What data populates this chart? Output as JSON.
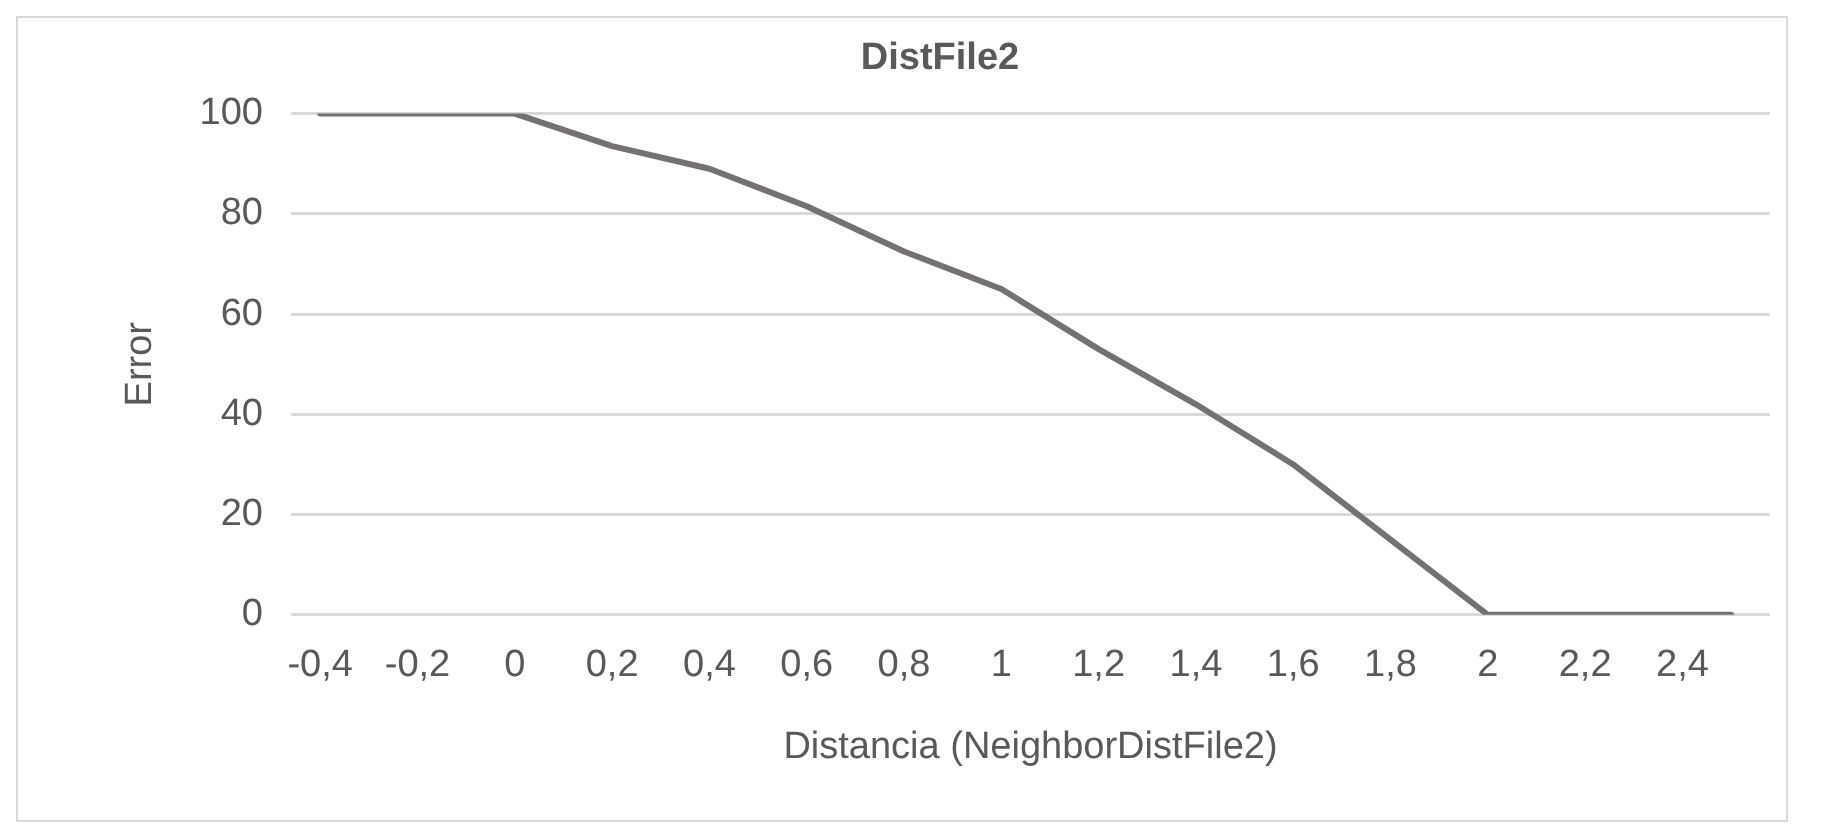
{
  "chart_data": {
    "type": "line",
    "title": "DistFile2",
    "xlabel": "Distancia (NeighborDistFile2)",
    "ylabel": "Error",
    "x": [
      -0.4,
      0,
      0.2,
      0.4,
      0.6,
      0.8,
      1.0,
      1.2,
      1.4,
      1.6,
      1.8,
      2.0,
      2.5
    ],
    "series": [
      {
        "color": "#757171",
        "values": [
          100,
          100,
          93.5,
          89,
          81.5,
          72.5,
          65,
          53,
          42,
          30,
          15,
          0,
          0
        ]
      }
    ],
    "xlim": [
      -0.46,
      2.58
    ],
    "xticks": [
      {
        "value": -0.4,
        "label": "-0,4"
      },
      {
        "value": -0.2,
        "label": "-0,2"
      },
      0,
      {
        "value": 0.2,
        "label": "0,2"
      },
      {
        "value": 0.4,
        "label": "0,4"
      },
      {
        "value": 0.6,
        "label": "0,6"
      },
      {
        "value": 0.8,
        "label": "0,8"
      },
      1,
      {
        "value": 1.2,
        "label": "1,2"
      },
      {
        "value": 1.4,
        "label": "1,4"
      },
      {
        "value": 1.6,
        "label": "1,6"
      },
      {
        "value": 1.8,
        "label": "1,8"
      },
      2,
      {
        "value": 2.2,
        "label": "2,2"
      },
      {
        "value": 2.4,
        "label": "2,4"
      }
    ],
    "ylim": [
      0,
      100
    ],
    "yticks": [
      0,
      20,
      40,
      60,
      80,
      100
    ],
    "grid": "y",
    "legend": false,
    "marker": "none",
    "line_style": "solid"
  }
}
